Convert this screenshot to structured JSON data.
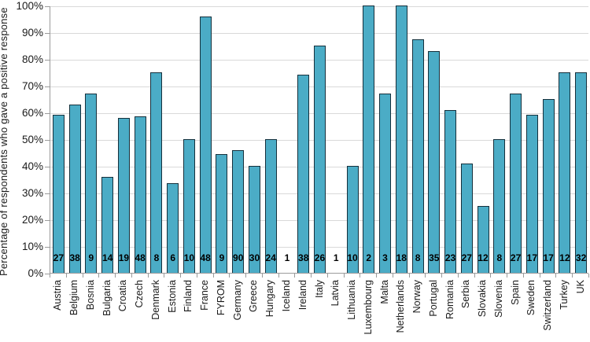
{
  "chart_data": {
    "type": "bar",
    "title": "",
    "xlabel": "",
    "ylabel": "Percentage of respondents who gave a positive response",
    "ylim": [
      0,
      100
    ],
    "ytick_step": 10,
    "ytick_labels": [
      "0%",
      "10%",
      "20%",
      "30%",
      "40%",
      "50%",
      "60%",
      "70%",
      "80%",
      "90%",
      "100%"
    ],
    "grid": true,
    "legend": "none",
    "categories": [
      "Austria",
      "Belgium",
      "Bosnia",
      "Bulgaria",
      "Croatia",
      "Czech",
      "Denmark",
      "Estonia",
      "Finland",
      "France",
      "FYROM",
      "Germany",
      "Greece",
      "Hungary",
      "Iceland",
      "Ireland",
      "Italy",
      "Latvia",
      "Lithuania",
      "Luxembourg",
      "Malta",
      "Netherlands",
      "Norway",
      "Portugal",
      "Romania",
      "Serbia",
      "Slovakia",
      "Slovenia",
      "Spain",
      "Sweden",
      "Switzerland",
      "Turkey",
      "UK"
    ],
    "values": [
      59,
      63,
      67,
      36,
      58,
      58.5,
      75,
      33.5,
      50,
      96,
      44.5,
      46,
      40,
      50,
      0,
      74,
      85,
      0,
      40,
      100,
      67,
      100,
      87.5,
      83,
      61,
      41,
      25,
      50,
      67,
      59,
      65,
      75,
      75
    ],
    "bar_labels": [
      "27",
      "38",
      "9",
      "14",
      "19",
      "48",
      "8",
      "6",
      "10",
      "48",
      "9",
      "90",
      "30",
      "24",
      "1",
      "38",
      "26",
      "1",
      "10",
      "2",
      "3",
      "18",
      "8",
      "35",
      "23",
      "27",
      "12",
      "8",
      "27",
      "17",
      "17",
      "12",
      "32"
    ],
    "colors": {
      "bar_fill": "#4BACC6",
      "bar_border": "#15303c",
      "gridline": "#D9D9D9",
      "axis": "#9B9B9B",
      "text": "#1A1A1A"
    }
  }
}
